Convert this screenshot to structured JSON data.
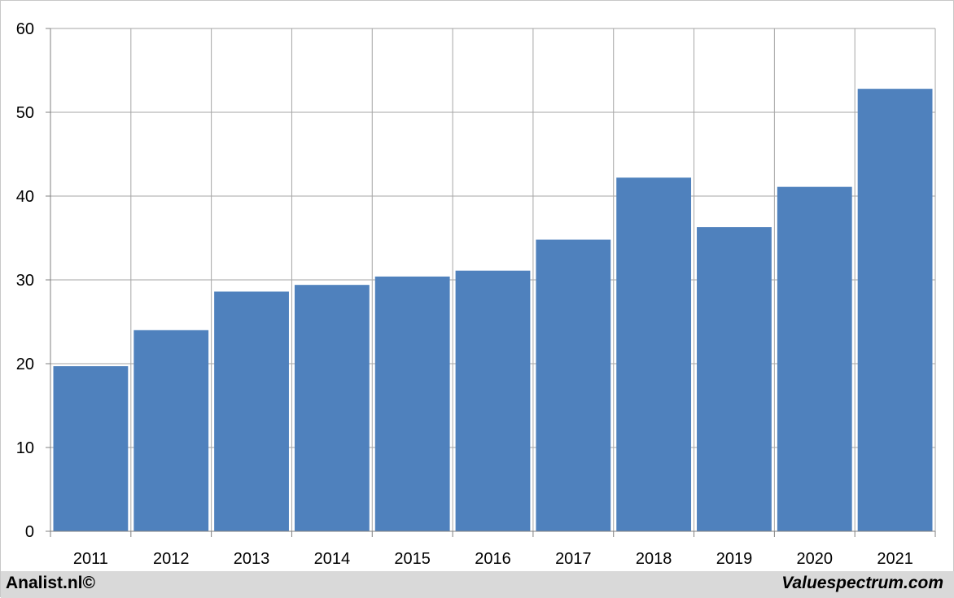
{
  "chart_data": {
    "type": "bar",
    "categories": [
      "2011",
      "2012",
      "2013",
      "2014",
      "2015",
      "2016",
      "2017",
      "2018",
      "2019",
      "2020",
      "2021"
    ],
    "values": [
      19.7,
      24.0,
      28.6,
      29.4,
      30.4,
      31.1,
      34.8,
      42.2,
      36.3,
      41.1,
      52.8
    ],
    "y_ticks": [
      "0",
      "10",
      "20",
      "30",
      "40",
      "50",
      "60"
    ],
    "ylim": [
      0,
      60
    ],
    "grid": true,
    "bar_color": "#4f81bd",
    "grid_color": "#a6a6a6"
  },
  "footer": {
    "left_credit": "Analist.nl©",
    "right_credit": "Valuespectrum.com"
  }
}
